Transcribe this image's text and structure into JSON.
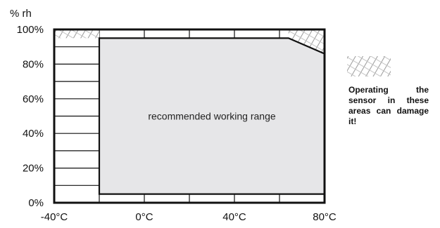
{
  "chart_data": {
    "type": "area",
    "title": "",
    "ylabel": "% rh",
    "xlabel": "",
    "x_ticks": [
      -40,
      0,
      40,
      80
    ],
    "x_tick_labels": [
      "-40°C",
      "0°C",
      "40°C",
      "80°C"
    ],
    "y_ticks": [
      0,
      20,
      40,
      60,
      80,
      100
    ],
    "y_tick_labels": [
      "0%",
      "20%",
      "40%",
      "60%",
      "80%",
      "100%"
    ],
    "xlim": [
      -40,
      80
    ],
    "ylim": [
      0,
      100
    ],
    "grid": true,
    "recommended_range": {
      "label": "recommended working range",
      "polygon": [
        [
          -20,
          5
        ],
        [
          -20,
          95
        ],
        [
          64,
          95
        ],
        [
          80,
          86
        ],
        [
          80,
          5
        ],
        [
          -20,
          5
        ]
      ]
    },
    "damage_areas": [
      {
        "polygon": [
          [
            -40,
            100
          ],
          [
            -40,
            95
          ],
          [
            -20,
            95
          ],
          [
            -20,
            100
          ]
        ]
      },
      {
        "polygon": [
          [
            64,
            100
          ],
          [
            80,
            100
          ],
          [
            80,
            86
          ],
          [
            64,
            95
          ]
        ]
      }
    ],
    "legend": {
      "text": "Operating the sensor in these areas can damage it!",
      "placement": "right"
    }
  }
}
